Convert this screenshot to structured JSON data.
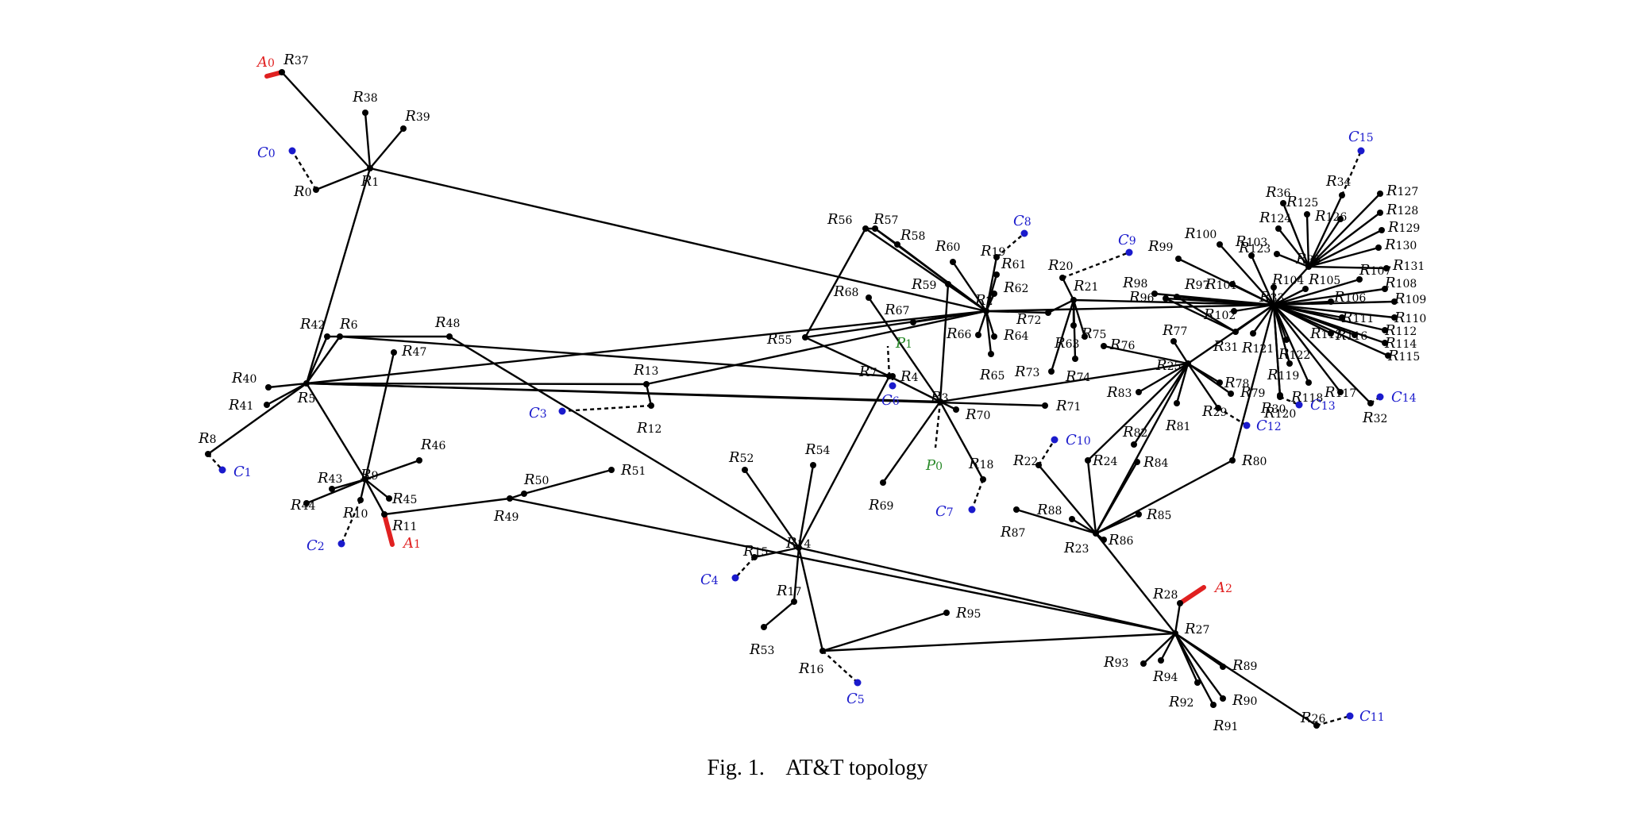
{
  "caption": {
    "prefix": "Fig. 1.",
    "title": "AT&T topology"
  },
  "colors": {
    "router": "#000000",
    "client": "#1a1acc",
    "attacker": "#e02020",
    "peer": "#2a8a2a"
  },
  "legend_kinds": {
    "R": "router",
    "C": "client",
    "A": "attacker",
    "P": "peer"
  },
  "nodes": [
    "R0",
    "R1",
    "R2",
    "R3",
    "R4",
    "R5",
    "R6",
    "R7",
    "R8",
    "R9",
    "R10",
    "R11",
    "R12",
    "R13",
    "R14",
    "R15",
    "R16",
    "R17",
    "R18",
    "R19",
    "R20",
    "R21",
    "R22",
    "R23",
    "R24",
    "R25",
    "R26",
    "R27",
    "R28",
    "R29",
    "R30",
    "R31",
    "R32",
    "R33",
    "R34",
    "R35",
    "R36",
    "R37",
    "R38",
    "R39",
    "R40",
    "R41",
    "R42",
    "R43",
    "R44",
    "R45",
    "R46",
    "R47",
    "R48",
    "R49",
    "R50",
    "R51",
    "R52",
    "R53",
    "R54",
    "R55",
    "R56",
    "R57",
    "R58",
    "R59",
    "R60",
    "R61",
    "R62",
    "R63",
    "R64",
    "R65",
    "R66",
    "R67",
    "R68",
    "R69",
    "R70",
    "R71",
    "R72",
    "R73",
    "R74",
    "R75",
    "R76",
    "R77",
    "R78",
    "R79",
    "R80",
    "R81",
    "R82",
    "R83",
    "R84",
    "R85",
    "R86",
    "R87",
    "R88",
    "R89",
    "R90",
    "R91",
    "R92",
    "R93",
    "R94",
    "R95",
    "R96",
    "R97",
    "R98",
    "R99",
    "R100",
    "R101",
    "R102",
    "R103",
    "R104",
    "R105",
    "R106",
    "R107",
    "R108",
    "R109",
    "R110",
    "R111",
    "R112",
    "R113",
    "R114",
    "R115",
    "R116",
    "R117",
    "R118",
    "R119",
    "R120",
    "R121",
    "R122",
    "R123",
    "R124",
    "R125",
    "R126",
    "R127",
    "R128",
    "R129",
    "R130",
    "R131",
    "C0",
    "C1",
    "C2",
    "C3",
    "C4",
    "C5",
    "C6",
    "C7",
    "C8",
    "C9",
    "C10",
    "C11",
    "C12",
    "C13",
    "C14",
    "C15",
    "A0",
    "A1",
    "A2",
    "P0",
    "P1"
  ],
  "edges": [
    [
      "R1",
      "R37"
    ],
    [
      "R1",
      "R38"
    ],
    [
      "R1",
      "R39"
    ],
    [
      "R1",
      "R0"
    ],
    [
      "R1",
      "R5"
    ],
    [
      "R1",
      "R2"
    ],
    [
      "R5",
      "R40"
    ],
    [
      "R5",
      "R41"
    ],
    [
      "R5",
      "R8"
    ],
    [
      "R5",
      "R42"
    ],
    [
      "R5",
      "R6"
    ],
    [
      "R5",
      "R9"
    ],
    [
      "R5",
      "R13"
    ],
    [
      "R5",
      "R3"
    ],
    [
      "R5",
      "R71"
    ],
    [
      "R5",
      "R2"
    ],
    [
      "R42",
      "R6"
    ],
    [
      "R6",
      "R48"
    ],
    [
      "R6",
      "R7"
    ],
    [
      "R48",
      "R14"
    ],
    [
      "R9",
      "R47"
    ],
    [
      "R9",
      "R43"
    ],
    [
      "R9",
      "R44"
    ],
    [
      "R9",
      "R45"
    ],
    [
      "R9",
      "R46"
    ],
    [
      "R9",
      "R10"
    ],
    [
      "R9",
      "R11"
    ],
    [
      "R11",
      "R49"
    ],
    [
      "R49",
      "R50"
    ],
    [
      "R50",
      "R51"
    ],
    [
      "R49",
      "R27"
    ],
    [
      "R13",
      "R12"
    ],
    [
      "R13",
      "R2"
    ],
    [
      "R14",
      "R15"
    ],
    [
      "R14",
      "R52"
    ],
    [
      "R14",
      "R54"
    ],
    [
      "R14",
      "R17"
    ],
    [
      "R14",
      "R16"
    ],
    [
      "R14",
      "R27"
    ],
    [
      "R14",
      "R7"
    ],
    [
      "R17",
      "R53"
    ],
    [
      "R16",
      "R95"
    ],
    [
      "R16",
      "R27"
    ],
    [
      "R7",
      "R4"
    ],
    [
      "R7",
      "R3"
    ],
    [
      "R3",
      "R69"
    ],
    [
      "R3",
      "R70"
    ],
    [
      "R3",
      "R18"
    ],
    [
      "R3",
      "R25"
    ],
    [
      "R3",
      "R59"
    ],
    [
      "R3",
      "R68"
    ],
    [
      "R55",
      "R56"
    ],
    [
      "R55",
      "R7"
    ],
    [
      "R56",
      "R57"
    ],
    [
      "R56",
      "R2"
    ],
    [
      "R57",
      "R2"
    ],
    [
      "R57",
      "R58"
    ],
    [
      "R58",
      "R2"
    ],
    [
      "R2",
      "R59"
    ],
    [
      "R2",
      "R60"
    ],
    [
      "R2",
      "R61"
    ],
    [
      "R2",
      "R19"
    ],
    [
      "R2",
      "R62"
    ],
    [
      "R2",
      "R64"
    ],
    [
      "R2",
      "R65"
    ],
    [
      "R2",
      "R66"
    ],
    [
      "R2",
      "R67"
    ],
    [
      "R2",
      "R72"
    ],
    [
      "R2",
      "R33"
    ],
    [
      "R2",
      "R55"
    ],
    [
      "R21",
      "R20"
    ],
    [
      "R21",
      "R72"
    ],
    [
      "R21",
      "R73"
    ],
    [
      "R21",
      "R74"
    ],
    [
      "R21",
      "R75"
    ],
    [
      "R21",
      "R63"
    ],
    [
      "R21",
      "R33"
    ],
    [
      "R25",
      "R76"
    ],
    [
      "R25",
      "R77"
    ],
    [
      "R25",
      "R78"
    ],
    [
      "R25",
      "R79"
    ],
    [
      "R25",
      "R29"
    ],
    [
      "R25",
      "R81"
    ],
    [
      "R25",
      "R82"
    ],
    [
      "R25",
      "R83"
    ],
    [
      "R25",
      "R24"
    ],
    [
      "R25",
      "R23"
    ],
    [
      "R25",
      "R33"
    ],
    [
      "R23",
      "R24"
    ],
    [
      "R23",
      "R84"
    ],
    [
      "R23",
      "R85"
    ],
    [
      "R23",
      "R86"
    ],
    [
      "R23",
      "R87"
    ],
    [
      "R23",
      "R88"
    ],
    [
      "R23",
      "R22"
    ],
    [
      "R23",
      "R27"
    ],
    [
      "R23",
      "R80"
    ],
    [
      "R80",
      "R33"
    ],
    [
      "R27",
      "R28"
    ],
    [
      "R27",
      "R89"
    ],
    [
      "R27",
      "R90"
    ],
    [
      "R27",
      "R91"
    ],
    [
      "R27",
      "R92"
    ],
    [
      "R27",
      "R93"
    ],
    [
      "R27",
      "R94"
    ],
    [
      "R27",
      "R26"
    ],
    [
      "R33",
      "R96"
    ],
    [
      "R33",
      "R97"
    ],
    [
      "R33",
      "R98"
    ],
    [
      "R33",
      "R99"
    ],
    [
      "R33",
      "R100"
    ],
    [
      "R33",
      "R101"
    ],
    [
      "R33",
      "R102"
    ],
    [
      "R33",
      "R103"
    ],
    [
      "R33",
      "R104"
    ],
    [
      "R33",
      "R105"
    ],
    [
      "R33",
      "R106"
    ],
    [
      "R33",
      "R107"
    ],
    [
      "R33",
      "R108"
    ],
    [
      "R33",
      "R109"
    ],
    [
      "R33",
      "R110"
    ],
    [
      "R33",
      "R111"
    ],
    [
      "R33",
      "R112"
    ],
    [
      "R33",
      "R113"
    ],
    [
      "R33",
      "R114"
    ],
    [
      "R33",
      "R115"
    ],
    [
      "R33",
      "R116"
    ],
    [
      "R33",
      "R117"
    ],
    [
      "R33",
      "R118"
    ],
    [
      "R33",
      "R119"
    ],
    [
      "R33",
      "R120"
    ],
    [
      "R33",
      "R121"
    ],
    [
      "R33",
      "R122"
    ],
    [
      "R33",
      "R30"
    ],
    [
      "R33",
      "R31"
    ],
    [
      "R33",
      "R32"
    ],
    [
      "R33",
      "R35"
    ],
    [
      "R96",
      "R31"
    ],
    [
      "R97",
      "R31"
    ],
    [
      "R35",
      "R34"
    ],
    [
      "R35",
      "R36"
    ],
    [
      "R35",
      "R123"
    ],
    [
      "R35",
      "R124"
    ],
    [
      "R35",
      "R125"
    ],
    [
      "R35",
      "R126"
    ],
    [
      "R35",
      "R127"
    ],
    [
      "R35",
      "R128"
    ],
    [
      "R35",
      "R129"
    ],
    [
      "R35",
      "R130"
    ],
    [
      "R35",
      "R131"
    ],
    [
      "R0",
      "C0",
      "dashed"
    ],
    [
      "R8",
      "C1",
      "dashed"
    ],
    [
      "R10",
      "C2",
      "dashed"
    ],
    [
      "R12",
      "C3",
      "dashed"
    ],
    [
      "R15",
      "C4",
      "dashed"
    ],
    [
      "R16",
      "C5",
      "dashed"
    ],
    [
      "R4",
      "C6",
      "dashed"
    ],
    [
      "R18",
      "C7",
      "dashed"
    ],
    [
      "R19",
      "C8",
      "dashed"
    ],
    [
      "R20",
      "C9",
      "dashed"
    ],
    [
      "R22",
      "C10",
      "dashed"
    ],
    [
      "R26",
      "C11",
      "dashed"
    ],
    [
      "R29",
      "C12",
      "dashed"
    ],
    [
      "R30",
      "C13",
      "dashed"
    ],
    [
      "R32",
      "C14",
      "dashed"
    ],
    [
      "R34",
      "C15",
      "dashed"
    ],
    [
      "R7",
      "P1",
      "dashed"
    ],
    [
      "R3",
      "P0",
      "dashed"
    ],
    [
      "R37",
      "A0",
      "attack"
    ],
    [
      "R11",
      "A1",
      "attack"
    ],
    [
      "R28",
      "A2",
      "attack"
    ]
  ]
}
